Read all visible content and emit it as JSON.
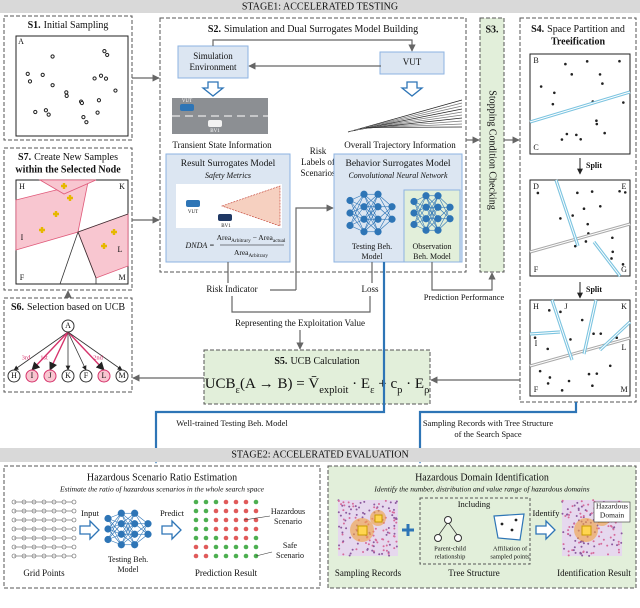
{
  "stage1_header": "STAGE1: ACCELERATED TESTING",
  "s1": {
    "step": "S1.",
    "title": "Initial Sampling",
    "node": "A"
  },
  "s2": {
    "step": "S2.",
    "title": "Simulation and Dual Surrogates Model Building",
    "simulation_env": [
      "Simulation",
      "Environment"
    ],
    "vut": "VUT",
    "traffic_vehicles": [
      "VUT",
      "BV1"
    ],
    "transient_info": "Transient State Information",
    "trajectory_info": "Overall Trajectory Information",
    "result_model": {
      "title": "Result Surrogates Model",
      "subtitle": "Safety Metrics",
      "vehicles": [
        "VUT",
        "BV1"
      ],
      "dnda": {
        "lhs": "DNDA =",
        "numerator": [
          [
            "Area",
            "Arbitrary"
          ],
          [
            " − Area",
            "actual"
          ]
        ],
        "denominator": [
          [
            "Area",
            "Arbitrary"
          ]
        ]
      }
    },
    "behavior_model": {
      "title": "Behavior Surrogates Model",
      "subtitle": "Convolutional Neural Network",
      "testing": [
        "Testing Beh.",
        "Model"
      ],
      "observation": [
        "Observation",
        "Beh. Model"
      ]
    }
  },
  "risk_labels": [
    "Risk",
    "Labels of",
    "Scenarios"
  ],
  "risk_indicator": "Risk Indicator",
  "loss": "Loss",
  "exploitation": "Representing the Exploitation Value",
  "prediction_performance": "Prediction Performance",
  "s3": {
    "step": "S3.",
    "title": "Stopping Condition Checking"
  },
  "s4": {
    "step": "S4.",
    "title": [
      "Space Partition and",
      "Treeification"
    ],
    "split": [
      "Split",
      "Split"
    ],
    "panels": [
      [
        "B",
        "C"
      ],
      [
        "D",
        "E",
        "F",
        "G"
      ],
      [
        "H",
        "J",
        "K",
        "I",
        "L",
        "F",
        "M"
      ]
    ]
  },
  "s5": {
    "step": "S5.",
    "title": "UCB Calculation",
    "formula": [
      [
        "UCB",
        "ε"
      ],
      [
        "(A → B) = V̄",
        "exploit"
      ],
      [
        " · E",
        "ε"
      ],
      [
        " + c",
        "p"
      ],
      [
        " · E",
        "ρ"
      ]
    ]
  },
  "s6": {
    "step": "S6.",
    "title": "Selection based on UCB",
    "root": "A",
    "leaves": [
      "H",
      "I",
      "J",
      "K",
      "F",
      "L",
      "M"
    ],
    "ranks": [
      "3rd",
      "1st",
      "2nd"
    ]
  },
  "s7": {
    "step": "S7.",
    "title": [
      "Create New Samples",
      "within the Selected Node"
    ],
    "regions": [
      "H",
      "K",
      "I",
      "L",
      "F",
      "M"
    ]
  },
  "well_trained": "Well-trained Testing Beh. Model",
  "sampling_records_tree": [
    "Sampling Records with Tree Structure",
    "of the Search Space"
  ],
  "stage2_header": "STAGE2: ACCELERATED EVALUATION",
  "ratio_estimation": {
    "title": "Hazardous Scenario Ratio Estimation",
    "subtitle": "Estimate the ratio of hazardous scenarios in the whole search space",
    "input": "Input",
    "predict": "Predict",
    "grid_points": "Grid Points",
    "model": [
      "Testing Beh.",
      "Model"
    ],
    "prediction_result": "Prediction Result",
    "hazardous": [
      "Hazardous",
      "Scenario"
    ],
    "safe": [
      "Safe",
      "Scenario"
    ]
  },
  "domain_identification": {
    "title": "Hazardous Domain Identification",
    "subtitle": "Identify the number, distribution and value range of hazardous domains",
    "including": "Including",
    "parent_child": [
      "Parent-child",
      "relationship"
    ],
    "affiliation": [
      "Affiliation of",
      "sampled points"
    ],
    "identify": "Identify",
    "sampling_records": "Sampling Records",
    "tree_structure": "Tree Structure",
    "identification_result": "Identification Result",
    "hazardous_domain": [
      "Hazardous",
      "Domain"
    ]
  }
}
